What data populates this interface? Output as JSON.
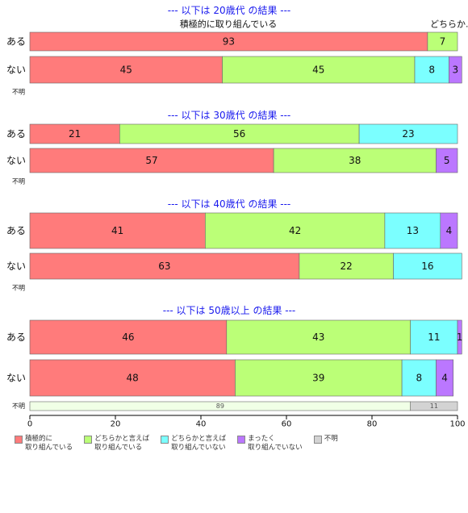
{
  "chart_data": {
    "type": "bar",
    "orientation": "horizontal",
    "stacked": true,
    "xlim": [
      0,
      100
    ],
    "x_ticks": [
      "0",
      "20",
      "40",
      "60",
      "80",
      "100"
    ],
    "legend_position": "bottom",
    "categories_legend": [
      {
        "label": "積極的に\n取り組んでいる",
        "color": "#ff7b7b"
      },
      {
        "label": "どちらかと言えば\n取り組んでいる",
        "color": "#bbff77"
      },
      {
        "label": "どちらかと言えば\n取り組んでいない",
        "color": "#7bffff"
      },
      {
        "label": "まったく\n取り組んでいない",
        "color": "#bb77ff"
      },
      {
        "label": "不明",
        "color": "#d3d3d3"
      }
    ],
    "panels": [
      {
        "title": "--- 以下は 20歳代 の結果 ---",
        "annotation": "積極的に取り組んでいる",
        "overflow_label": "どちらか...",
        "rows": [
          {
            "label": "ある",
            "values": [
              93,
              7,
              0,
              0,
              0
            ]
          },
          {
            "label": "ない",
            "values": [
              45,
              45,
              8,
              3,
              0
            ]
          },
          {
            "label": "不明",
            "values": [
              0,
              0,
              0,
              0,
              0
            ]
          }
        ]
      },
      {
        "title": "--- 以下は 30歳代 の結果 ---",
        "rows": [
          {
            "label": "ある",
            "values": [
              21,
              56,
              23,
              0,
              0
            ]
          },
          {
            "label": "ない",
            "values": [
              57,
              38,
              0,
              5,
              0
            ]
          },
          {
            "label": "不明",
            "values": [
              0,
              0,
              0,
              0,
              0
            ]
          }
        ]
      },
      {
        "title": "--- 以下は 40歳代 の結果 ---",
        "rows": [
          {
            "label": "ある",
            "values": [
              41,
              42,
              13,
              4,
              0
            ]
          },
          {
            "label": "ない",
            "values": [
              63,
              22,
              16,
              0,
              0
            ]
          },
          {
            "label": "不明",
            "values": [
              0,
              0,
              0,
              0,
              0
            ]
          }
        ]
      },
      {
        "title": "--- 以下は 50歳以上 の結果 ---",
        "rows": [
          {
            "label": "ある",
            "values": [
              46,
              43,
              11,
              1,
              0
            ]
          },
          {
            "label": "ない",
            "values": [
              48,
              39,
              8,
              4,
              0
            ]
          },
          {
            "label": "不明",
            "values": [
              0,
              89,
              0,
              0,
              11
            ]
          }
        ]
      }
    ]
  }
}
